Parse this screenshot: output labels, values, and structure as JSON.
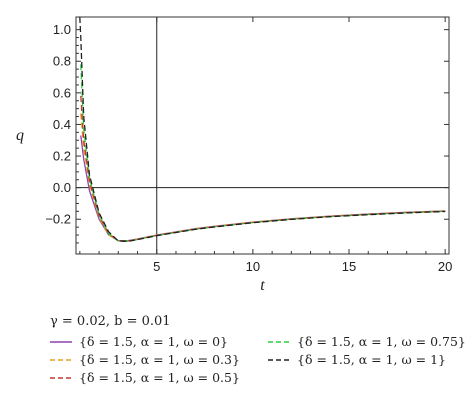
{
  "chart_data": {
    "type": "line",
    "xlabel": "t",
    "ylabel": "q",
    "xlim": [
      0.8,
      20.2
    ],
    "ylim": [
      -0.42,
      1.08
    ],
    "xticks": [
      5,
      10,
      15,
      20
    ],
    "yticks": [
      -0.2,
      0.0,
      0.2,
      0.4,
      0.6,
      0.8,
      1.0
    ],
    "xtick_labels": [
      "5",
      "10",
      "15",
      "20"
    ],
    "ytick_labels": [
      "−0.2",
      "0.0",
      "0.2",
      "0.4",
      "0.6",
      "0.8",
      "1.0"
    ],
    "reference_lines": {
      "vertical_x": 5,
      "horizontal_y": 0
    },
    "parameters_label": "γ = 0.02, b = 0.01",
    "legend_columns": 2,
    "series": [
      {
        "name": "{δ = 1.5, α = 1, ω = 0}",
        "color": "#8e44ad",
        "dash": "solid",
        "x": [
          1.05,
          1.2,
          1.5,
          2.0,
          2.5,
          3.0,
          3.5,
          4.0,
          5.0,
          6.0,
          7.0,
          8.0,
          10.0,
          12.0,
          14.0,
          16.0,
          18.0,
          20.0
        ],
        "y": [
          0.33,
          0.18,
          -0.02,
          -0.2,
          -0.3,
          -0.335,
          -0.335,
          -0.325,
          -0.3,
          -0.28,
          -0.26,
          -0.245,
          -0.218,
          -0.197,
          -0.18,
          -0.167,
          -0.156,
          -0.147
        ]
      },
      {
        "name": "{δ = 1.5, α = 1, ω = 0.3}",
        "color": "#e8a020",
        "dash": "dashed",
        "x": [
          1.05,
          1.2,
          1.5,
          2.0,
          2.5,
          3.0,
          3.5,
          4.0,
          5.0,
          6.0,
          7.0,
          8.0,
          10.0,
          12.0,
          14.0,
          16.0,
          18.0,
          20.0
        ],
        "y": [
          0.47,
          0.25,
          0.02,
          -0.19,
          -0.3,
          -0.337,
          -0.337,
          -0.326,
          -0.301,
          -0.281,
          -0.261,
          -0.246,
          -0.219,
          -0.198,
          -0.181,
          -0.168,
          -0.157,
          -0.148
        ]
      },
      {
        "name": "{δ = 1.5, α = 1, ω = 0.5}",
        "color": "#c0392b",
        "dash": "dashed",
        "x": [
          1.05,
          1.2,
          1.5,
          2.0,
          2.5,
          3.0,
          3.5,
          4.0,
          5.0,
          6.0,
          7.0,
          8.0,
          10.0,
          12.0,
          14.0,
          16.0,
          18.0,
          20.0
        ],
        "y": [
          0.58,
          0.3,
          0.04,
          -0.18,
          -0.29,
          -0.337,
          -0.338,
          -0.327,
          -0.302,
          -0.282,
          -0.262,
          -0.247,
          -0.22,
          -0.199,
          -0.182,
          -0.169,
          -0.158,
          -0.149
        ]
      },
      {
        "name": "{δ = 1.5, α = 1, ω = 0.75}",
        "color": "#2ecc40",
        "dash": "dashed",
        "x": [
          1.05,
          1.2,
          1.5,
          2.0,
          2.5,
          3.0,
          3.5,
          4.0,
          5.0,
          6.0,
          7.0,
          8.0,
          10.0,
          12.0,
          14.0,
          16.0,
          18.0,
          20.0
        ],
        "y": [
          0.78,
          0.37,
          0.06,
          -0.17,
          -0.29,
          -0.338,
          -0.339,
          -0.328,
          -0.303,
          -0.283,
          -0.263,
          -0.248,
          -0.221,
          -0.2,
          -0.183,
          -0.17,
          -0.159,
          -0.15
        ]
      },
      {
        "name": "{δ = 1.5, α = 1, ω = 1}",
        "color": "#222222",
        "dash": "dashed",
        "x": [
          1.0,
          1.05,
          1.2,
          1.5,
          2.0,
          2.5,
          3.0,
          3.5,
          4.0,
          5.0,
          6.0,
          7.0,
          8.0,
          10.0,
          12.0,
          14.0,
          16.0,
          18.0,
          20.0
        ],
        "y": [
          1.08,
          0.95,
          0.45,
          0.08,
          -0.16,
          -0.28,
          -0.338,
          -0.34,
          -0.329,
          -0.304,
          -0.284,
          -0.264,
          -0.249,
          -0.222,
          -0.201,
          -0.184,
          -0.171,
          -0.16,
          -0.151
        ]
      }
    ]
  }
}
